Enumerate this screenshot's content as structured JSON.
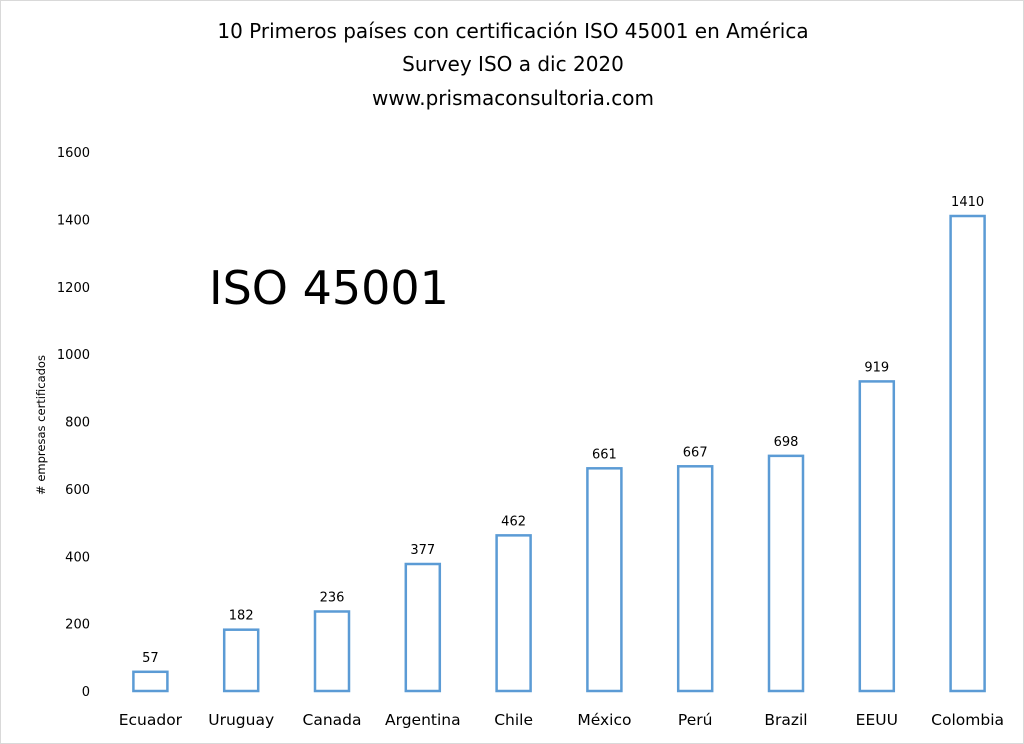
{
  "chart_data": {
    "type": "bar",
    "title": "10 Primeros países con certificación ISO 45001 en América",
    "subtitle": "Survey ISO a dic 2020",
    "subtitle2": "www.prismaconsultoria.com",
    "annotation": "ISO 45001",
    "ylabel": "# empresas certificados",
    "xlabel": "",
    "ylim": [
      0,
      1600
    ],
    "yticks": [
      0,
      200,
      400,
      600,
      800,
      1000,
      1200,
      1400,
      1600
    ],
    "categories": [
      "Ecuador",
      "Uruguay",
      "Canada",
      "Argentina",
      "Chile",
      "México",
      "Perú",
      "Brazil",
      "EEUU",
      "Colombia"
    ],
    "values": [
      57,
      182,
      236,
      377,
      462,
      661,
      667,
      698,
      919,
      1410
    ],
    "grid": false,
    "legend": "none",
    "colors": {
      "bar_stroke": "#5b9bd5",
      "bar_fill": "#ffffff"
    }
  }
}
